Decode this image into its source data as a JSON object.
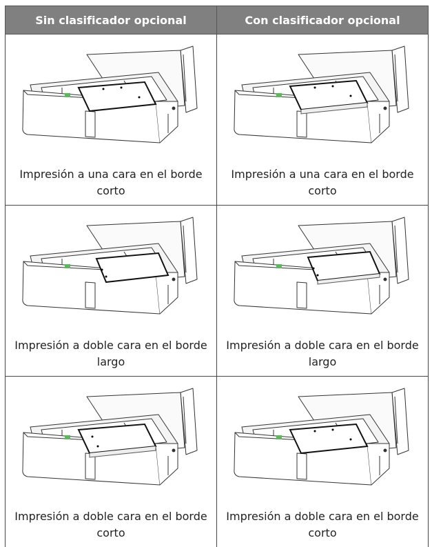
{
  "table": {
    "header": [
      "Sin clasificador opcional",
      "Con clasificador opcional"
    ],
    "rows": [
      [
        "Impresión a una cara en el borde corto",
        "Impresión a una cara en el borde corto"
      ],
      [
        "Impresión a doble cara en el borde largo",
        "Impresión a doble cara en el borde largo"
      ],
      [
        "Impresión a doble cara en el borde corto",
        "Impresión a doble cara en el borde corto"
      ]
    ]
  }
}
